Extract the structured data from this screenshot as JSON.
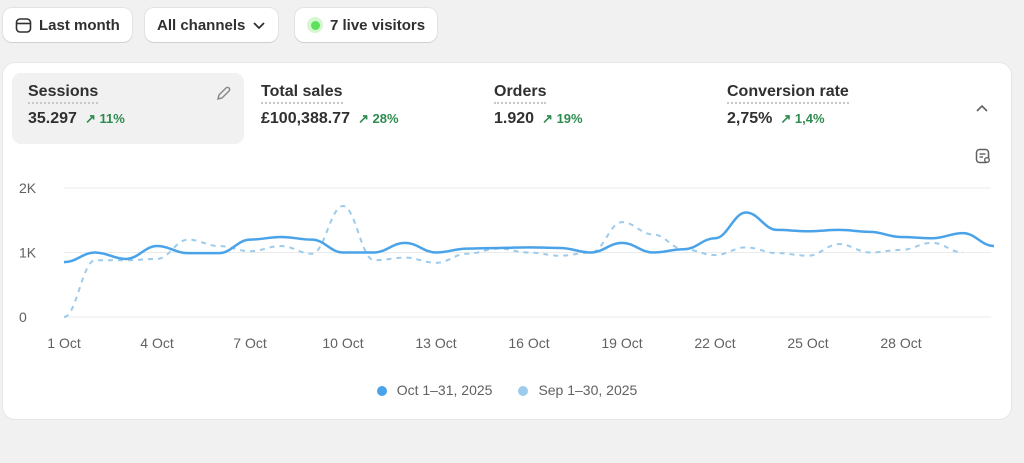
{
  "toolbar": {
    "date_range": "Last month",
    "channels": "All channels",
    "live_visitors": "7 live visitors"
  },
  "metrics": [
    {
      "label": "Sessions",
      "value": "35.297",
      "delta": "11%"
    },
    {
      "label": "Total sales",
      "value": "£100,388.77",
      "delta": "28%"
    },
    {
      "label": "Orders",
      "value": "1.920",
      "delta": "19%"
    },
    {
      "label": "Conversion rate",
      "value": "2,75%",
      "delta": "1,4%"
    }
  ],
  "colors": {
    "current": "#4aa3e8",
    "previous": "#9ccbec",
    "positive": "#2e8b4f",
    "live": "#5ee15a"
  },
  "chart_data": {
    "type": "line",
    "y_ticks": [
      "0",
      "1K",
      "2K"
    ],
    "ylim": [
      0,
      2000
    ],
    "x_ticks": [
      "1 Oct",
      "4 Oct",
      "7 Oct",
      "10 Oct",
      "13 Oct",
      "16 Oct",
      "19 Oct",
      "22 Oct",
      "25 Oct",
      "28 Oct"
    ],
    "grid": true,
    "legend": "bottom",
    "series": [
      {
        "name": "Oct 1–31, 2025",
        "style": "solid",
        "values": [
          850,
          1000,
          900,
          1100,
          990,
          990,
          1200,
          1240,
          1200,
          1000,
          1000,
          1150,
          1000,
          1060,
          1070,
          1080,
          1070,
          1000,
          1150,
          1000,
          1050,
          1220,
          1620,
          1350,
          1330,
          1350,
          1320,
          1240,
          1220,
          1300,
          1100
        ]
      },
      {
        "name": "Sep 1–30, 2025",
        "style": "dashed",
        "values": [
          0,
          880,
          880,
          900,
          1200,
          1100,
          1020,
          1100,
          980,
          1720,
          880,
          920,
          840,
          980,
          1060,
          1000,
          950,
          1000,
          1470,
          1280,
          1050,
          960,
          1080,
          990,
          950,
          1130,
          1000,
          1040,
          1150,
          1000
        ]
      }
    ]
  }
}
